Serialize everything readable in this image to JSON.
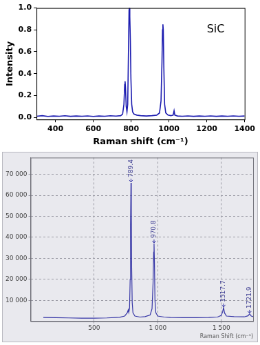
{
  "chart_data": [
    {
      "type": "line",
      "x_label": "Raman shift (cm⁻¹)",
      "y_label": "Intensity",
      "color": "#1c1cb0",
      "grid": false,
      "annotations": [
        {
          "text": "SiC",
          "x": 1200,
          "y": 0.8
        }
      ],
      "x": [
        300,
        330,
        360,
        390,
        420,
        450,
        480,
        510,
        540,
        570,
        600,
        630,
        660,
        690,
        720,
        745,
        755,
        762,
        766,
        768,
        770,
        774,
        778,
        782,
        786,
        789,
        791,
        793,
        796,
        799,
        803,
        808,
        815,
        830,
        850,
        880,
        910,
        935,
        950,
        958,
        963,
        966,
        968,
        970,
        973,
        977,
        983,
        995,
        1010,
        1022,
        1027,
        1031,
        1045,
        1070,
        1100,
        1130,
        1160,
        1190,
        1220,
        1250,
        1280,
        1310,
        1340,
        1370,
        1400
      ],
      "values": [
        0.01,
        0.015,
        0.008,
        0.012,
        0.01,
        0.014,
        0.009,
        0.012,
        0.01,
        0.013,
        0.008,
        0.012,
        0.01,
        0.014,
        0.011,
        0.015,
        0.03,
        0.12,
        0.3,
        0.33,
        0.28,
        0.1,
        0.05,
        0.12,
        0.6,
        0.98,
        1.0,
        0.92,
        0.7,
        0.35,
        0.12,
        0.05,
        0.03,
        0.02,
        0.015,
        0.012,
        0.015,
        0.02,
        0.04,
        0.15,
        0.5,
        0.8,
        0.85,
        0.8,
        0.45,
        0.12,
        0.04,
        0.02,
        0.015,
        0.02,
        0.06,
        0.02,
        0.012,
        0.01,
        0.013,
        0.009,
        0.012,
        0.01,
        0.013,
        0.009,
        0.012,
        0.01,
        0.013,
        0.01,
        0.012
      ],
      "xlim": [
        300,
        1400
      ],
      "xticks": [
        400,
        600,
        800,
        1000,
        1200,
        1400
      ],
      "ylim": [
        -0.02,
        1.0
      ],
      "yticks": [
        {
          "value": 0,
          "label": "0.0"
        },
        0.2,
        0.4,
        0.6,
        0.8,
        {
          "value": 1,
          "label": "1.0"
        }
      ]
    },
    {
      "type": "line",
      "x_label": "Raman Shift (cm⁻¹)",
      "color": "#3535a6",
      "grid": true,
      "annotations": [
        {
          "text": "789.4",
          "x": 789.4,
          "y": 66000
        },
        {
          "text": "970.8",
          "x": 970.8,
          "y": 37000
        },
        {
          "text": "1517.7",
          "x": 1517.7,
          "y": 6500
        },
        {
          "text": "1721.9",
          "x": 1721.9,
          "y": 3500
        }
      ],
      "x": [
        100,
        200,
        300,
        400,
        500,
        600,
        700,
        740,
        760,
        768,
        772,
        778,
        783,
        786,
        789.4,
        792,
        795,
        799,
        805,
        820,
        860,
        900,
        940,
        955,
        963,
        968,
        970.8,
        974,
        978,
        985,
        1000,
        1050,
        1100,
        1200,
        1300,
        1400,
        1470,
        1500,
        1510,
        1517.7,
        1525,
        1540,
        1600,
        1680,
        1710,
        1721.9,
        1735,
        1750
      ],
      "values": [
        1800,
        1700,
        1600,
        1500,
        1500,
        1600,
        1900,
        2500,
        4000,
        5500,
        4200,
        6000,
        20000,
        45000,
        66000,
        52000,
        25000,
        9000,
        4000,
        2500,
        2000,
        2200,
        3000,
        6000,
        18000,
        33000,
        37000,
        28000,
        10000,
        4000,
        2500,
        2000,
        1800,
        1700,
        1700,
        1800,
        2000,
        2800,
        4500,
        6500,
        4000,
        2500,
        2200,
        2100,
        2600,
        3500,
        2500,
        2200
      ],
      "xlim": [
        0,
        1750
      ],
      "xticks": [
        500,
        {
          "value": 1000,
          "label": "1 000"
        },
        {
          "value": 1500,
          "label": "1 500"
        }
      ],
      "ylim": [
        0,
        78000
      ],
      "yticks": [
        {
          "value": 10000,
          "label": "10 000"
        },
        {
          "value": 20000,
          "label": "20 000"
        },
        {
          "value": 30000,
          "label": "30 000"
        },
        {
          "value": 40000,
          "label": "40 000"
        },
        {
          "value": 50000,
          "label": "50 000"
        },
        {
          "value": 60000,
          "label": "60 000"
        },
        {
          "value": 70000,
          "label": "70 000"
        }
      ]
    }
  ]
}
